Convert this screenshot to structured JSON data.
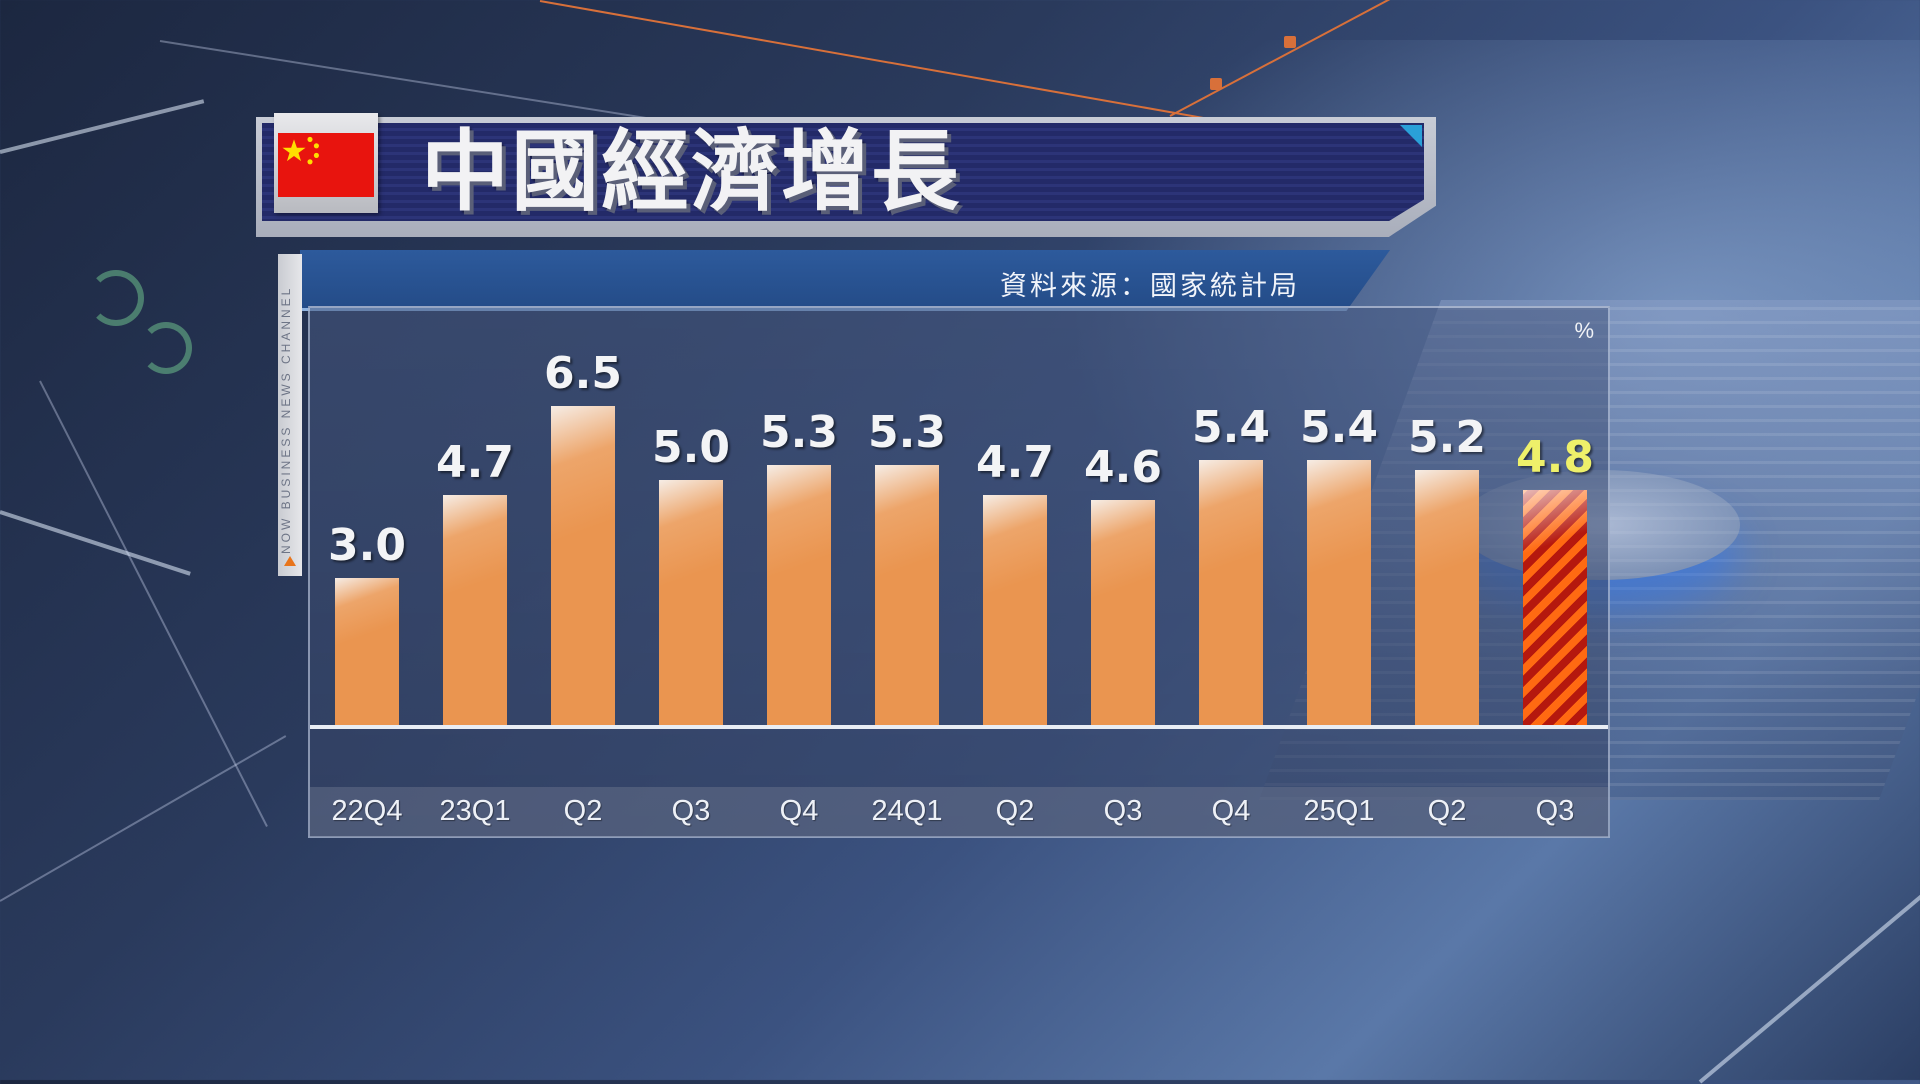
{
  "header": {
    "title": "中國經濟增長",
    "flag": "china-flag",
    "flag_colors": {
      "field": "#e8140e",
      "stars": "#ffde00"
    }
  },
  "source": {
    "text": "資料來源：國家統計局"
  },
  "channel": {
    "text": "NOW BUSINESS NEWS CHANNEL"
  },
  "chart": {
    "unit": "%",
    "bar_color": "#ea9550",
    "highlight_bar_colors": [
      "#ff6a12",
      "#b5180e"
    ],
    "highlight_label_color": "#eef06a",
    "bars": [
      {
        "label": "22Q4",
        "value": "3.0"
      },
      {
        "label": "23Q1",
        "value": "4.7"
      },
      {
        "label": "Q2",
        "value": "6.5"
      },
      {
        "label": "Q3",
        "value": "5.0"
      },
      {
        "label": "Q4",
        "value": "5.3"
      },
      {
        "label": "24Q1",
        "value": "5.3"
      },
      {
        "label": "Q2",
        "value": "4.7"
      },
      {
        "label": "Q3",
        "value": "4.6"
      },
      {
        "label": "Q4",
        "value": "5.4"
      },
      {
        "label": "25Q1",
        "value": "5.4"
      },
      {
        "label": "Q2",
        "value": "5.2"
      },
      {
        "label": "Q3",
        "value": "4.8",
        "highlight": true
      }
    ]
  },
  "chart_data": {
    "type": "bar",
    "title": "中國經濟增長",
    "subtitle": "資料來源：國家統計局",
    "xlabel": "",
    "ylabel": "%",
    "categories": [
      "22Q4",
      "23Q1",
      "Q2",
      "Q3",
      "Q4",
      "24Q1",
      "Q2",
      "Q3",
      "Q4",
      "25Q1",
      "Q2",
      "Q3"
    ],
    "values": [
      3.0,
      4.7,
      6.5,
      5.0,
      5.3,
      5.3,
      4.7,
      4.6,
      5.4,
      5.4,
      5.2,
      4.8
    ],
    "highlighted_index": 11,
    "data_labels": true,
    "grid": false,
    "legend": null,
    "ylim": [
      0,
      7
    ]
  }
}
